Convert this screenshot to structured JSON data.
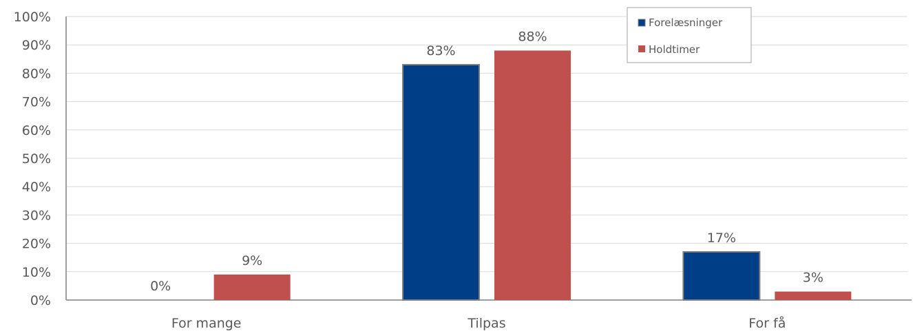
{
  "chart_data": {
    "type": "bar",
    "categories": [
      "For mange",
      "Tilpas",
      "For få"
    ],
    "series": [
      {
        "name": "Forelæsninger",
        "values": [
          0,
          83,
          17
        ],
        "labels": [
          "0%",
          "83%",
          "17%"
        ],
        "color": "#003f87"
      },
      {
        "name": "Holdtimer",
        "values": [
          9,
          88,
          3
        ],
        "labels": [
          "9%",
          "88%",
          "3%"
        ],
        "color": "#c0504d"
      }
    ],
    "ylim": [
      0,
      100
    ],
    "yticks": [
      "0%",
      "10%",
      "20%",
      "30%",
      "40%",
      "50%",
      "60%",
      "70%",
      "80%",
      "90%",
      "100%"
    ],
    "grid": true,
    "legend_position": "top-right",
    "title": "",
    "xlabel": "",
    "ylabel": ""
  }
}
